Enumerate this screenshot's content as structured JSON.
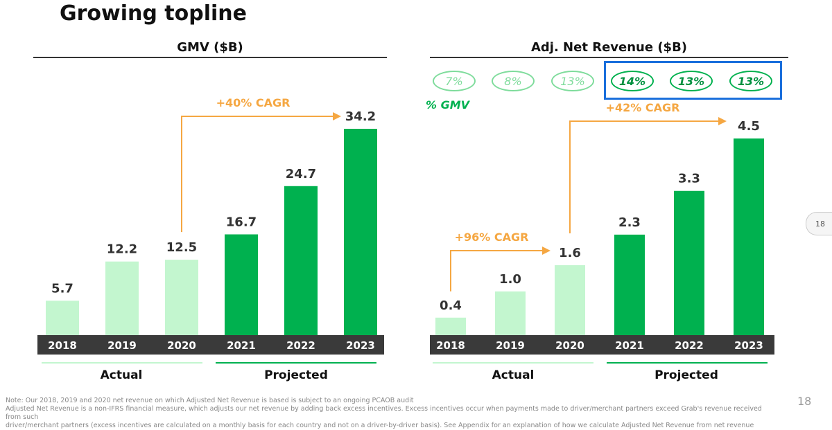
{
  "slide": {
    "title": "Growing topline",
    "page_number": "18",
    "side_tab": "18",
    "footnote_line1": "Note: Our 2018, 2019 and 2020 net revenue on which Adjusted Net Revenue is based is subject to an ongoing PCAOB audit",
    "footnote_line2": "Adjusted Net Revenue is a non-IFRS financial measure, which adjusts our net revenue by adding back excess incentives. Excess incentives occur when payments made to driver/merchant partners exceed Grab's revenue received from such",
    "footnote_line3": "driver/merchant partners (excess incentives are calculated on a monthly basis for each country and not on a driver-by-driver basis). See Appendix for an explanation of how we calculate Adjusted Net Revenue from net revenue"
  },
  "colors": {
    "actual_bar": "#c3f6cf",
    "projected_bar": "#00B14F",
    "axis_band": "#3a3a3a",
    "cagr_arrow": "#f5a742",
    "highlight": "#1a6fdc"
  },
  "gmv_panel": {
    "heading": "GMV ($B)",
    "actual_label": "Actual",
    "projected_label": "Projected",
    "cagr": "+40% CAGR"
  },
  "rev_panel": {
    "heading": "Adj. Net Revenue ($B)",
    "actual_label": "Actual",
    "projected_label": "Projected",
    "cagr_actual": "+96% CAGR",
    "cagr_projected": "+42% CAGR",
    "gmv_tag": "% GMV",
    "pct_gmv": [
      "7%",
      "8%",
      "13%",
      "14%",
      "13%",
      "13%"
    ]
  },
  "chart_data": [
    {
      "type": "bar",
      "title": "GMV ($B)",
      "categories": [
        "2018",
        "2019",
        "2020",
        "2021",
        "2022",
        "2023"
      ],
      "values": [
        5.7,
        12.2,
        12.5,
        16.7,
        24.7,
        34.2
      ],
      "labels": [
        "5.7",
        "12.2",
        "12.5",
        "16.7",
        "24.7",
        "34.2"
      ],
      "status": [
        "actual",
        "actual",
        "actual",
        "projected",
        "projected",
        "projected"
      ],
      "ylim": [
        0,
        34.2
      ]
    },
    {
      "type": "bar",
      "title": "Adj. Net Revenue ($B)",
      "categories": [
        "2018",
        "2019",
        "2020",
        "2021",
        "2022",
        "2023"
      ],
      "values": [
        0.4,
        1.0,
        1.6,
        2.3,
        3.3,
        4.5
      ],
      "labels": [
        "0.4",
        "1.0",
        "1.6",
        "2.3",
        "3.3",
        "4.5"
      ],
      "status": [
        "actual",
        "actual",
        "actual",
        "projected",
        "projected",
        "projected"
      ],
      "ylim": [
        0,
        4.5
      ]
    }
  ]
}
